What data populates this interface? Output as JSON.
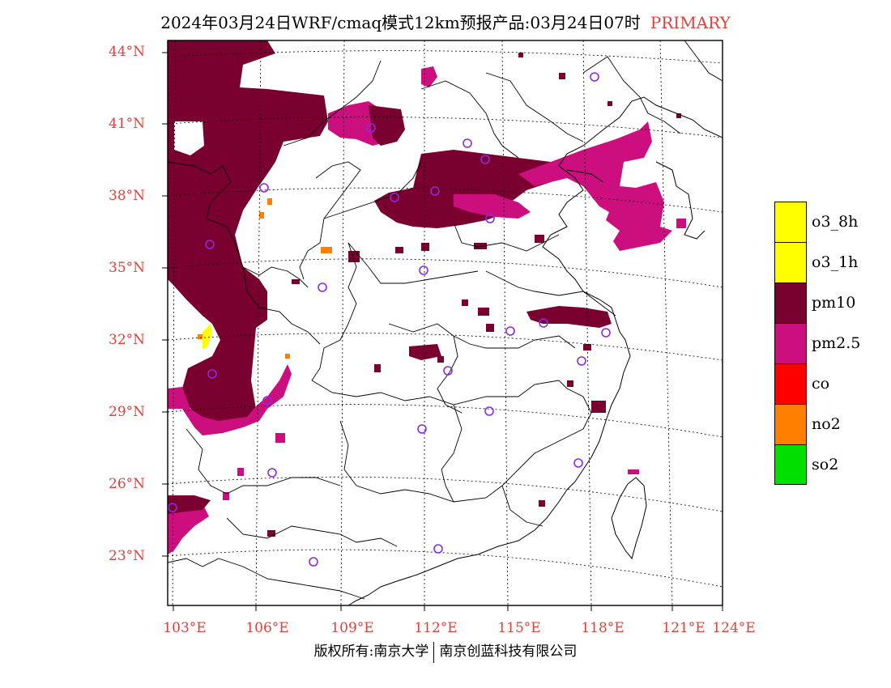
{
  "title": {
    "main": "2024年03月24日WRF/cmaq模式12km预报产品:03月24日07时",
    "tag": "PRIMARY"
  },
  "axes": {
    "lat_labels": [
      "44°N",
      "41°N",
      "38°N",
      "35°N",
      "32°N",
      "29°N",
      "26°N",
      "23°N"
    ],
    "lon_labels": [
      "103°E",
      "106°E",
      "109°E",
      "112°E",
      "115°E",
      "118°E",
      "121°E",
      "124°E"
    ]
  },
  "legend": [
    {
      "label": "o3_8h",
      "color": "#ffff00"
    },
    {
      "label": "o3_1h",
      "color": "#ffff00"
    },
    {
      "label": "pm10",
      "color": "#7a0030"
    },
    {
      "label": "pm2.5",
      "color": "#cc0e7e"
    },
    {
      "label": "co",
      "color": "#ff0000"
    },
    {
      "label": "no2",
      "color": "#ff7f00"
    },
    {
      "label": "so2",
      "color": "#00e000"
    }
  ],
  "footer": {
    "left": "版权所有:南京大学",
    "right": "南京创蓝科技有限公司"
  }
}
